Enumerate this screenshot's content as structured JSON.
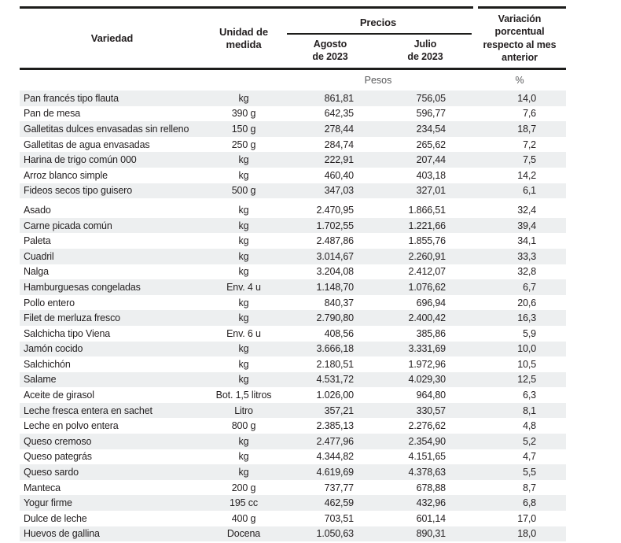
{
  "colors": {
    "text": "#231f20",
    "rule": "#1d1d1b",
    "row_alt_background": "#edeff0",
    "muted_subheader": "#58595b",
    "page_background": "#ffffff"
  },
  "table": {
    "header": {
      "variedad": "Variedad",
      "unidad": "Unidad de\nmedida",
      "precios": "Precios",
      "agosto": "Agosto\nde 2023",
      "julio": "Julio\nde 2023",
      "variacion": "Variación\nporcentual\nrespecto al mes\nanterior"
    },
    "subheader": {
      "pesos": "Pesos",
      "pct": "%"
    },
    "group_break_after": 6,
    "columns": [
      "Variedad",
      "Unidad de medida",
      "Agosto de 2023",
      "Julio de 2023",
      "Variación porcentual respecto al mes anterior"
    ],
    "rows": [
      {
        "variedad": "Pan francés tipo flauta",
        "unidad": "kg",
        "agosto": "861,81",
        "julio": "756,05",
        "variacion": "14,0"
      },
      {
        "variedad": "Pan de mesa",
        "unidad": "390 g",
        "agosto": "642,35",
        "julio": "596,77",
        "variacion": "7,6"
      },
      {
        "variedad": "Galletitas dulces envasadas sin relleno",
        "unidad": "150 g",
        "agosto": "278,44",
        "julio": "234,54",
        "variacion": "18,7"
      },
      {
        "variedad": "Galletitas de agua envasadas",
        "unidad": "250 g",
        "agosto": "284,74",
        "julio": "265,62",
        "variacion": "7,2"
      },
      {
        "variedad": "Harina de trigo común 000",
        "unidad": "kg",
        "agosto": "222,91",
        "julio": "207,44",
        "variacion": "7,5"
      },
      {
        "variedad": "Arroz blanco simple",
        "unidad": "kg",
        "agosto": "460,40",
        "julio": "403,18",
        "variacion": "14,2"
      },
      {
        "variedad": "Fideos secos tipo guisero",
        "unidad": "500 g",
        "agosto": "347,03",
        "julio": "327,01",
        "variacion": "6,1"
      },
      {
        "variedad": "Asado",
        "unidad": "kg",
        "agosto": "2.470,95",
        "julio": "1.866,51",
        "variacion": "32,4"
      },
      {
        "variedad": "Carne picada común",
        "unidad": "kg",
        "agosto": "1.702,55",
        "julio": "1.221,66",
        "variacion": "39,4"
      },
      {
        "variedad": "Paleta",
        "unidad": "kg",
        "agosto": "2.487,86",
        "julio": "1.855,76",
        "variacion": "34,1"
      },
      {
        "variedad": "Cuadril",
        "unidad": "kg",
        "agosto": "3.014,67",
        "julio": "2.260,91",
        "variacion": "33,3"
      },
      {
        "variedad": "Nalga",
        "unidad": "kg",
        "agosto": "3.204,08",
        "julio": "2.412,07",
        "variacion": "32,8"
      },
      {
        "variedad": "Hamburguesas congeladas",
        "unidad": "Env. 4 u",
        "agosto": "1.148,70",
        "julio": "1.076,62",
        "variacion": "6,7"
      },
      {
        "variedad": "Pollo entero",
        "unidad": "kg",
        "agosto": "840,37",
        "julio": "696,94",
        "variacion": "20,6"
      },
      {
        "variedad": "Filet de merluza fresco",
        "unidad": "kg",
        "agosto": "2.790,80",
        "julio": "2.400,42",
        "variacion": "16,3"
      },
      {
        "variedad": "Salchicha tipo Viena",
        "unidad": "Env. 6 u",
        "agosto": "408,56",
        "julio": "385,86",
        "variacion": "5,9"
      },
      {
        "variedad": "Jamón cocido",
        "unidad": "kg",
        "agosto": "3.666,18",
        "julio": "3.331,69",
        "variacion": "10,0"
      },
      {
        "variedad": "Salchichón",
        "unidad": "kg",
        "agosto": "2.180,51",
        "julio": "1.972,96",
        "variacion": "10,5"
      },
      {
        "variedad": "Salame",
        "unidad": "kg",
        "agosto": "4.531,72",
        "julio": "4.029,30",
        "variacion": "12,5"
      },
      {
        "variedad": "Aceite de girasol",
        "unidad": "Bot. 1,5 litros",
        "agosto": "1.026,00",
        "julio": "964,80",
        "variacion": "6,3"
      },
      {
        "variedad": "Leche fresca entera en sachet",
        "unidad": "Litro",
        "agosto": "357,21",
        "julio": "330,57",
        "variacion": "8,1"
      },
      {
        "variedad": "Leche en polvo entera",
        "unidad": "800 g",
        "agosto": "2.385,13",
        "julio": "2.276,62",
        "variacion": "4,8"
      },
      {
        "variedad": "Queso cremoso",
        "unidad": "kg",
        "agosto": "2.477,96",
        "julio": "2.354,90",
        "variacion": "5,2"
      },
      {
        "variedad": "Queso pategrás",
        "unidad": "kg",
        "agosto": "4.344,82",
        "julio": "4.151,65",
        "variacion": "4,7"
      },
      {
        "variedad": "Queso sardo",
        "unidad": "kg",
        "agosto": "4.619,69",
        "julio": "4.378,63",
        "variacion": "5,5"
      },
      {
        "variedad": "Manteca",
        "unidad": "200 g",
        "agosto": "737,77",
        "julio": "678,88",
        "variacion": "8,7"
      },
      {
        "variedad": "Yogur firme",
        "unidad": "195 cc",
        "agosto": "462,59",
        "julio": "432,96",
        "variacion": "6,8"
      },
      {
        "variedad": "Dulce de leche",
        "unidad": "400 g",
        "agosto": "703,51",
        "julio": "601,14",
        "variacion": "17,0"
      },
      {
        "variedad": "Huevos de gallina",
        "unidad": "Docena",
        "agosto": "1.050,63",
        "julio": "890,31",
        "variacion": "18,0"
      }
    ]
  }
}
